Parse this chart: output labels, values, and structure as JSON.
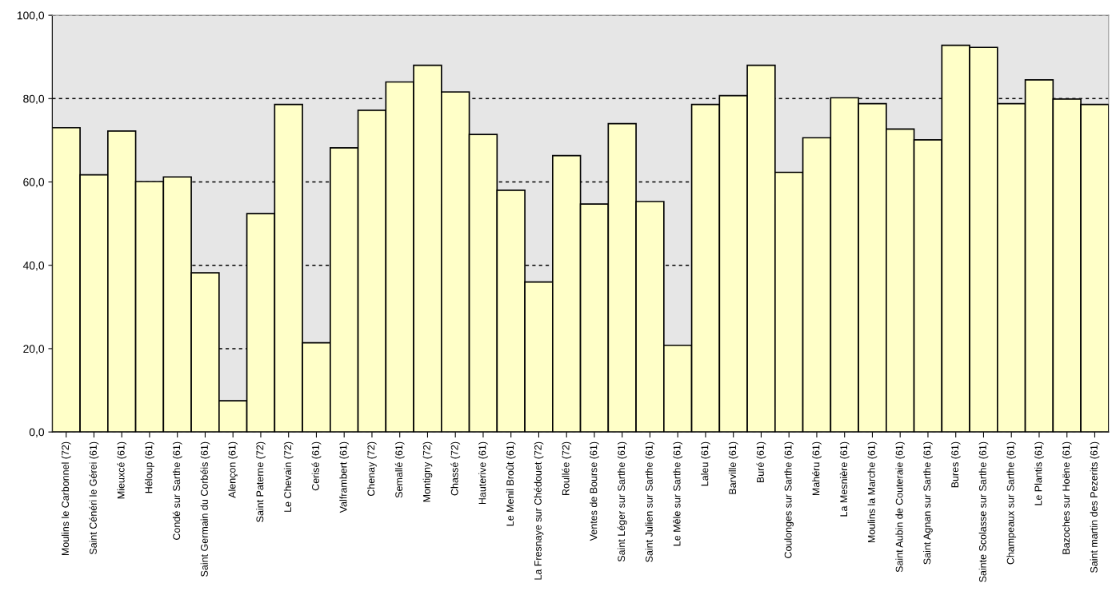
{
  "chart_data": {
    "type": "bar",
    "categories": [
      "Moulins le Carbonnel (72)",
      "Saint Cénéri le Gérei (61)",
      "Mieuxcé (61)",
      "Héloup (61)",
      "Condé sur Sarthe (61)",
      "Saint Germain du Corbéis (61)",
      "Alençon (61)",
      "Saint Paterne (72)",
      "Le Chevain (72)",
      "Cerisé (61)",
      "Valframbert (61)",
      "Chenay (72)",
      "Semallé (61)",
      "Montigny (72)",
      "Chassé (72)",
      "Hauterive (61)",
      "Le Menil Broût (61)",
      "La Fresnaye sur Chédouet (72)",
      "Roullée (72)",
      "Ventes de Bourse (61)",
      "Saint Léger sur Sarthe (61)",
      "Saint Julien sur Sarthe (61)",
      "Le Mêle sur Sarthe (61)",
      "Laleu (61)",
      "Barville (61)",
      "Buré (61)",
      "Coulonges sur Sarthe (61)",
      "Mahéru (61)",
      "La Mesnière (61)",
      "Moulins la Marche (61)",
      "Saint Aubin de Couteraie (61)",
      "Saint Agnan sur Sarthe (61)",
      "Bures (61)",
      "Sainte Scolasse sur Sarthe (61)",
      "Champeaux sur Sarthe (61)",
      "Le Plantis (61)",
      "Bazoches sur Hoëne (61)",
      "Saint martin des Pezerits (61)"
    ],
    "values": [
      73.0,
      61.7,
      72.2,
      60.1,
      61.2,
      38.2,
      7.5,
      52.4,
      78.6,
      21.4,
      68.2,
      77.2,
      84.0,
      88.0,
      81.6,
      71.4,
      58.0,
      36.0,
      66.3,
      54.7,
      74.0,
      55.3,
      20.8,
      78.6,
      80.7,
      88.0,
      62.3,
      70.6,
      80.2,
      78.8,
      72.7,
      70.1,
      92.8,
      92.3,
      78.8,
      84.5,
      79.9,
      78.6
    ],
    "color": "#ffffc8",
    "ylim": [
      0,
      100
    ],
    "yticks": [
      {
        "value": 0,
        "label": "0,0"
      },
      {
        "value": 20,
        "label": "20,0"
      },
      {
        "value": 40,
        "label": "40,0"
      },
      {
        "value": 60,
        "label": "60,0"
      },
      {
        "value": 80,
        "label": "80,0"
      },
      {
        "value": 100,
        "label": "100,0"
      }
    ],
    "grid": "y"
  }
}
